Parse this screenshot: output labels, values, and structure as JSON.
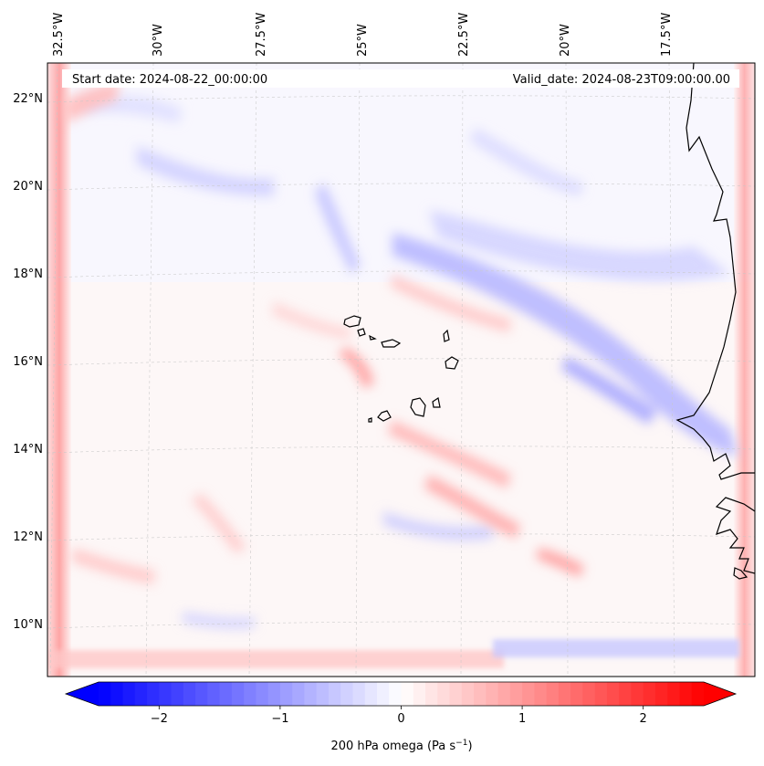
{
  "map": {
    "start_date_label": "Start date: 2024-08-22_00:00:00",
    "valid_date_label": "Valid_date: 2024-08-23T09:00:00.00",
    "lon_labels": [
      "32.5°W",
      "30°W",
      "27.5°W",
      "25°W",
      "22.5°W",
      "20°W",
      "17.5°W"
    ],
    "lat_labels": [
      "22°N",
      "20°N",
      "18°N",
      "16°N",
      "14°N",
      "12°N",
      "10°N"
    ],
    "field": "200 hPa omega",
    "colormap": "bwr",
    "negative_color": "#0000ff",
    "positive_color": "#ff0000",
    "neutral_color": "#ffffff",
    "coastline_color": "#000000",
    "gridlines": "dashed"
  },
  "colorbar": {
    "ticks": [
      "−2",
      "−1",
      "0",
      "1",
      "2"
    ],
    "tick_values": [
      -2,
      -1,
      0,
      1,
      2
    ],
    "range": [
      -2.5,
      2.5
    ],
    "label_prefix": "200 hPa omega (Pa s",
    "label_exp": "−1",
    "label_suffix": ")",
    "extend": "both"
  }
}
